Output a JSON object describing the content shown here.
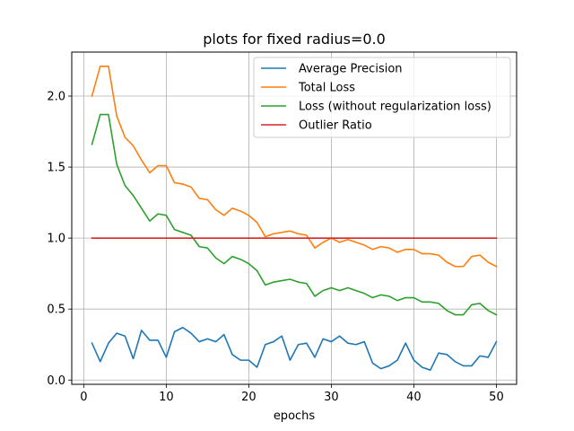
{
  "chart_data": {
    "type": "line",
    "title": "plots for fixed radius=0.0",
    "xlabel": "epochs",
    "ylabel": "",
    "xlim": [
      -1.45,
      52.45
    ],
    "ylim": [
      -0.03,
      2.31
    ],
    "xticks": [
      0,
      10,
      20,
      30,
      40,
      50
    ],
    "xtick_labels": [
      "0",
      "10",
      "20",
      "30",
      "40",
      "50"
    ],
    "yticks": [
      0.0,
      0.5,
      1.0,
      1.5,
      2.0
    ],
    "ytick_labels": [
      "0.0",
      "0.5",
      "1.0",
      "1.5",
      "2.0"
    ],
    "grid": true,
    "legend_position": "top-right",
    "x": [
      1,
      2,
      3,
      4,
      5,
      6,
      7,
      8,
      9,
      10,
      11,
      12,
      13,
      14,
      15,
      16,
      17,
      18,
      19,
      20,
      21,
      22,
      23,
      24,
      25,
      26,
      27,
      28,
      29,
      30,
      31,
      32,
      33,
      34,
      35,
      36,
      37,
      38,
      39,
      40,
      41,
      42,
      43,
      44,
      45,
      46,
      47,
      48,
      49,
      50
    ],
    "series": [
      {
        "name": "Average Precision",
        "color": "#1f77b4",
        "values": [
          0.26,
          0.13,
          0.26,
          0.33,
          0.31,
          0.15,
          0.35,
          0.28,
          0.28,
          0.16,
          0.34,
          0.37,
          0.33,
          0.27,
          0.29,
          0.27,
          0.32,
          0.18,
          0.14,
          0.14,
          0.09,
          0.25,
          0.27,
          0.31,
          0.14,
          0.25,
          0.26,
          0.16,
          0.29,
          0.27,
          0.31,
          0.26,
          0.25,
          0.27,
          0.12,
          0.08,
          0.1,
          0.14,
          0.26,
          0.14,
          0.09,
          0.07,
          0.19,
          0.18,
          0.13,
          0.1,
          0.1,
          0.17,
          0.16,
          0.27
        ]
      },
      {
        "name": "Total Loss",
        "color": "#ff7f0e",
        "values": [
          2.0,
          2.21,
          2.21,
          1.86,
          1.71,
          1.65,
          1.55,
          1.46,
          1.51,
          1.51,
          1.39,
          1.38,
          1.36,
          1.28,
          1.27,
          1.2,
          1.16,
          1.21,
          1.19,
          1.16,
          1.11,
          1.01,
          1.03,
          1.04,
          1.05,
          1.03,
          1.02,
          0.93,
          0.97,
          1.0,
          0.97,
          0.99,
          0.97,
          0.95,
          0.92,
          0.94,
          0.93,
          0.9,
          0.92,
          0.92,
          0.89,
          0.89,
          0.88,
          0.83,
          0.8,
          0.8,
          0.87,
          0.88,
          0.83,
          0.8
        ]
      },
      {
        "name": "Loss (without regularization loss)",
        "color": "#2ca02c",
        "values": [
          1.66,
          1.87,
          1.87,
          1.52,
          1.37,
          1.3,
          1.21,
          1.12,
          1.17,
          1.16,
          1.06,
          1.04,
          1.02,
          0.94,
          0.93,
          0.86,
          0.82,
          0.87,
          0.85,
          0.82,
          0.77,
          0.67,
          0.69,
          0.7,
          0.71,
          0.69,
          0.68,
          0.59,
          0.63,
          0.65,
          0.63,
          0.65,
          0.63,
          0.61,
          0.58,
          0.6,
          0.59,
          0.56,
          0.58,
          0.58,
          0.55,
          0.55,
          0.54,
          0.49,
          0.46,
          0.46,
          0.53,
          0.54,
          0.49,
          0.46
        ]
      },
      {
        "name": "Outlier Ratio",
        "color": "#d62728",
        "values": [
          1.0,
          1.0,
          1.0,
          1.0,
          1.0,
          1.0,
          1.0,
          1.0,
          1.0,
          1.0,
          1.0,
          1.0,
          1.0,
          1.0,
          1.0,
          1.0,
          1.0,
          1.0,
          1.0,
          1.0,
          1.0,
          1.0,
          1.0,
          1.0,
          1.0,
          1.0,
          1.0,
          1.0,
          1.0,
          1.0,
          1.0,
          1.0,
          1.0,
          1.0,
          1.0,
          1.0,
          1.0,
          1.0,
          1.0,
          1.0,
          1.0,
          1.0,
          1.0,
          1.0,
          1.0,
          1.0,
          1.0,
          1.0,
          1.0,
          1.0
        ]
      }
    ]
  }
}
